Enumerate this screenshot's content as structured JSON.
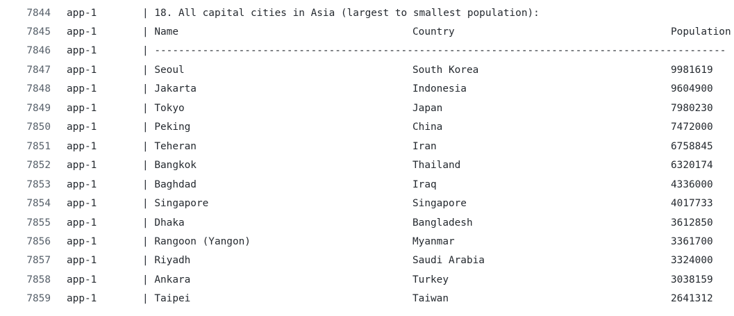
{
  "log": {
    "lines": [
      {
        "number": 7844,
        "source": "app-1",
        "cells": [
          "| 18. All capital cities in Asia (largest to smallest population):"
        ]
      },
      {
        "number": 7845,
        "source": "app-1",
        "cells": [
          "| Name",
          "Country",
          "Population"
        ]
      },
      {
        "number": 7846,
        "source": "app-1",
        "cells": [
          "| -----------------------------------------------------------------------------------------------"
        ]
      },
      {
        "number": 7847,
        "source": "app-1",
        "cells": [
          "| Seoul",
          "South Korea",
          9981619
        ]
      },
      {
        "number": 7848,
        "source": "app-1",
        "cells": [
          "| Jakarta",
          "Indonesia",
          9604900
        ]
      },
      {
        "number": 7849,
        "source": "app-1",
        "cells": [
          "| Tokyo",
          "Japan",
          7980230
        ]
      },
      {
        "number": 7850,
        "source": "app-1",
        "cells": [
          "| Peking",
          "China",
          7472000
        ]
      },
      {
        "number": 7851,
        "source": "app-1",
        "cells": [
          "| Teheran",
          "Iran",
          6758845
        ]
      },
      {
        "number": 7852,
        "source": "app-1",
        "cells": [
          "| Bangkok",
          "Thailand",
          6320174
        ]
      },
      {
        "number": 7853,
        "source": "app-1",
        "cells": [
          "| Baghdad",
          "Iraq",
          4336000
        ]
      },
      {
        "number": 7854,
        "source": "app-1",
        "cells": [
          "| Singapore",
          "Singapore",
          4017733
        ]
      },
      {
        "number": 7855,
        "source": "app-1",
        "cells": [
          "| Dhaka",
          "Bangladesh",
          3612850
        ]
      },
      {
        "number": 7856,
        "source": "app-1",
        "cells": [
          "| Rangoon (Yangon)",
          "Myanmar",
          3361700
        ]
      },
      {
        "number": 7857,
        "source": "app-1",
        "cells": [
          "| Riyadh",
          "Saudi Arabia",
          3324000
        ]
      },
      {
        "number": 7858,
        "source": "app-1",
        "cells": [
          "| Ankara",
          "Turkey",
          3038159
        ]
      },
      {
        "number": 7859,
        "source": "app-1",
        "cells": [
          "| Taipei",
          "Taiwan",
          2641312
        ]
      }
    ]
  }
}
